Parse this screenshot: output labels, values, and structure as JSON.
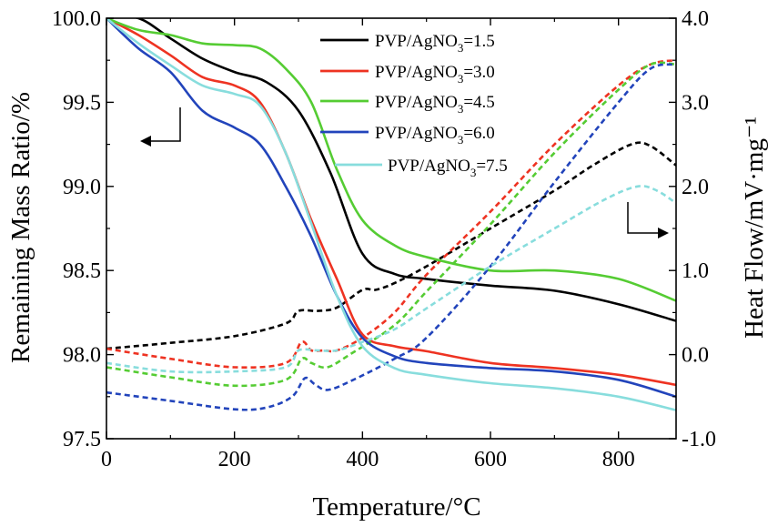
{
  "chart_data": {
    "type": "line",
    "xlabel": "Temperature/°C",
    "ylabel_left": "Remaining Mass Ratio/%",
    "ylabel_right": "Heat Flow/mV·mg⁻¹",
    "xlim": [
      0,
      890
    ],
    "ylim_left": [
      97.5,
      100.0
    ],
    "ylim_right": [
      -1.0,
      4.0
    ],
    "x_ticks": [
      0,
      200,
      400,
      600,
      800
    ],
    "y_left_ticks": [
      "97.5",
      "98.0",
      "98.5",
      "99.0",
      "99.5",
      "100.0"
    ],
    "y_right_ticks": [
      "-1.0",
      "0.0",
      "1.0",
      "2.0",
      "3.0",
      "4.0"
    ],
    "legend_position": "top-center",
    "annotations": [
      "arrow-left (TG curves → left axis)",
      "arrow-right (DSC curves → right axis)"
    ],
    "series": [
      {
        "name": "PVP/AgNO",
        "subscript": "3",
        "ratio": "=1.5",
        "color": "#000000",
        "tg": [
          [
            0,
            100.0
          ],
          [
            50,
            100.0
          ],
          [
            100,
            99.88
          ],
          [
            150,
            99.76
          ],
          [
            200,
            99.68
          ],
          [
            250,
            99.62
          ],
          [
            300,
            99.45
          ],
          [
            350,
            99.08
          ],
          [
            400,
            98.6
          ],
          [
            450,
            98.48
          ],
          [
            500,
            98.45
          ],
          [
            600,
            98.41
          ],
          [
            700,
            98.38
          ],
          [
            800,
            98.3
          ],
          [
            890,
            98.2
          ]
        ],
        "dsc": [
          [
            0,
            0.07
          ],
          [
            100,
            0.14
          ],
          [
            200,
            0.22
          ],
          [
            280,
            0.37
          ],
          [
            300,
            0.52
          ],
          [
            330,
            0.52
          ],
          [
            360,
            0.56
          ],
          [
            400,
            0.77
          ],
          [
            420,
            0.77
          ],
          [
            450,
            0.85
          ],
          [
            500,
            1.05
          ],
          [
            600,
            1.5
          ],
          [
            700,
            1.95
          ],
          [
            760,
            2.25
          ],
          [
            820,
            2.5
          ],
          [
            850,
            2.48
          ],
          [
            890,
            2.25
          ]
        ]
      },
      {
        "name": "PVP/AgNO",
        "subscript": "3",
        "ratio": "=3.0",
        "color": "#ee3322",
        "tg": [
          [
            0,
            100.0
          ],
          [
            50,
            99.9
          ],
          [
            100,
            99.78
          ],
          [
            150,
            99.65
          ],
          [
            200,
            99.6
          ],
          [
            240,
            99.5
          ],
          [
            280,
            99.2
          ],
          [
            320,
            98.8
          ],
          [
            360,
            98.45
          ],
          [
            400,
            98.12
          ],
          [
            450,
            98.05
          ],
          [
            500,
            98.02
          ],
          [
            600,
            97.95
          ],
          [
            700,
            97.92
          ],
          [
            800,
            97.88
          ],
          [
            890,
            97.82
          ]
        ],
        "dsc": [
          [
            0,
            0.07
          ],
          [
            100,
            -0.05
          ],
          [
            200,
            -0.15
          ],
          [
            280,
            -0.1
          ],
          [
            305,
            0.15
          ],
          [
            320,
            0.05
          ],
          [
            340,
            0.05
          ],
          [
            360,
            0.05
          ],
          [
            400,
            0.2
          ],
          [
            450,
            0.5
          ],
          [
            500,
            0.95
          ],
          [
            600,
            1.7
          ],
          [
            700,
            2.5
          ],
          [
            800,
            3.2
          ],
          [
            850,
            3.45
          ],
          [
            890,
            3.5
          ]
        ]
      },
      {
        "name": "PVP/AgNO",
        "subscript": "3",
        "ratio": "=4.5",
        "color": "#55cc33",
        "tg": [
          [
            0,
            100.0
          ],
          [
            50,
            99.93
          ],
          [
            100,
            99.9
          ],
          [
            150,
            99.85
          ],
          [
            200,
            99.84
          ],
          [
            240,
            99.82
          ],
          [
            280,
            99.7
          ],
          [
            320,
            99.5
          ],
          [
            360,
            99.1
          ],
          [
            400,
            98.8
          ],
          [
            450,
            98.65
          ],
          [
            500,
            98.58
          ],
          [
            600,
            98.5
          ],
          [
            700,
            98.5
          ],
          [
            800,
            98.45
          ],
          [
            890,
            98.32
          ]
        ],
        "dsc": [
          [
            0,
            -0.15
          ],
          [
            100,
            -0.27
          ],
          [
            200,
            -0.37
          ],
          [
            280,
            -0.3
          ],
          [
            305,
            -0.05
          ],
          [
            320,
            -0.1
          ],
          [
            345,
            -0.15
          ],
          [
            380,
            0.0
          ],
          [
            450,
            0.35
          ],
          [
            500,
            0.75
          ],
          [
            600,
            1.55
          ],
          [
            700,
            2.4
          ],
          [
            800,
            3.15
          ],
          [
            850,
            3.45
          ],
          [
            890,
            3.45
          ]
        ]
      },
      {
        "name": "PVP/AgNO",
        "subscript": "3",
        "ratio": "=6.0",
        "color": "#2244bb",
        "tg": [
          [
            0,
            100.0
          ],
          [
            50,
            99.82
          ],
          [
            100,
            99.68
          ],
          [
            150,
            99.45
          ],
          [
            200,
            99.35
          ],
          [
            240,
            99.25
          ],
          [
            280,
            99.0
          ],
          [
            320,
            98.7
          ],
          [
            360,
            98.35
          ],
          [
            400,
            98.1
          ],
          [
            450,
            97.99
          ],
          [
            500,
            97.95
          ],
          [
            600,
            97.92
          ],
          [
            700,
            97.9
          ],
          [
            800,
            97.85
          ],
          [
            890,
            97.75
          ]
        ],
        "dsc": [
          [
            0,
            -0.45
          ],
          [
            100,
            -0.55
          ],
          [
            200,
            -0.65
          ],
          [
            250,
            -0.63
          ],
          [
            290,
            -0.5
          ],
          [
            310,
            -0.28
          ],
          [
            325,
            -0.35
          ],
          [
            345,
            -0.42
          ],
          [
            380,
            -0.32
          ],
          [
            450,
            -0.05
          ],
          [
            500,
            0.2
          ],
          [
            600,
            1.05
          ],
          [
            700,
            2.05
          ],
          [
            800,
            3.0
          ],
          [
            850,
            3.4
          ],
          [
            890,
            3.45
          ]
        ]
      },
      {
        "name": "PVP/AgNO",
        "subscript": "3",
        "ratio": "=7.5",
        "color": "#88dddd",
        "tg": [
          [
            0,
            100.0
          ],
          [
            50,
            99.85
          ],
          [
            100,
            99.72
          ],
          [
            150,
            99.6
          ],
          [
            200,
            99.55
          ],
          [
            240,
            99.48
          ],
          [
            280,
            99.2
          ],
          [
            320,
            98.78
          ],
          [
            360,
            98.35
          ],
          [
            400,
            98.05
          ],
          [
            450,
            97.92
          ],
          [
            500,
            97.88
          ],
          [
            600,
            97.83
          ],
          [
            700,
            97.8
          ],
          [
            800,
            97.75
          ],
          [
            890,
            97.67
          ]
        ],
        "dsc": [
          [
            0,
            -0.1
          ],
          [
            100,
            -0.2
          ],
          [
            200,
            -0.2
          ],
          [
            280,
            -0.15
          ],
          [
            300,
            0.05
          ],
          [
            330,
            0.05
          ],
          [
            360,
            0.05
          ],
          [
            400,
            0.15
          ],
          [
            450,
            0.3
          ],
          [
            500,
            0.55
          ],
          [
            600,
            1.05
          ],
          [
            700,
            1.5
          ],
          [
            780,
            1.85
          ],
          [
            830,
            2.0
          ],
          [
            860,
            1.95
          ],
          [
            890,
            1.8
          ]
        ]
      }
    ]
  }
}
